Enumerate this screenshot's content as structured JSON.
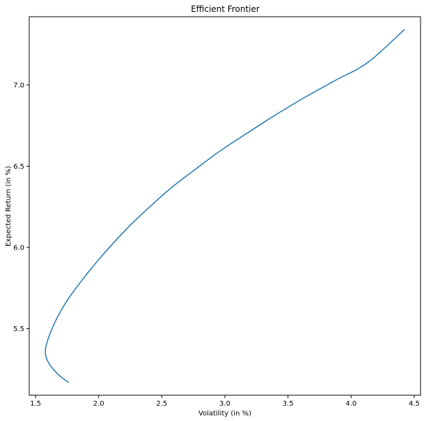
{
  "chart_data": {
    "type": "line",
    "title": "Efficient Frontier",
    "xlabel": "Volatility (in %)",
    "ylabel": "Expected Return (in %)",
    "xlim": [
      1.45,
      4.55
    ],
    "ylim": [
      5.09,
      7.42
    ],
    "grid": false,
    "x_ticks": [
      1.5,
      2.0,
      2.5,
      3.0,
      3.5,
      4.0,
      4.5
    ],
    "x_tick_labels": [
      "1.5",
      "2.0",
      "2.5",
      "3.0",
      "3.5",
      "4.0",
      "4.5"
    ],
    "y_ticks": [
      5.5,
      6.0,
      6.5,
      7.0
    ],
    "y_tick_labels": [
      "5.5",
      "6.0",
      "6.5",
      "7.0"
    ],
    "series": [
      {
        "color": "#1f77b4",
        "x": [
          1.76,
          1.69,
          1.62,
          1.585,
          1.578,
          1.585,
          1.62,
          1.68,
          1.765,
          1.88,
          1.995,
          2.12,
          2.255,
          2.405,
          2.58,
          2.765,
          2.955,
          3.17,
          3.39,
          3.625,
          3.88,
          4.135,
          4.42
        ],
        "y": [
          5.17,
          5.21,
          5.27,
          5.32,
          5.36,
          5.4,
          5.48,
          5.58,
          5.69,
          5.81,
          5.92,
          6.03,
          6.14,
          6.25,
          6.37,
          6.48,
          6.59,
          6.7,
          6.81,
          6.92,
          7.03,
          7.14,
          7.34
        ]
      }
    ]
  }
}
